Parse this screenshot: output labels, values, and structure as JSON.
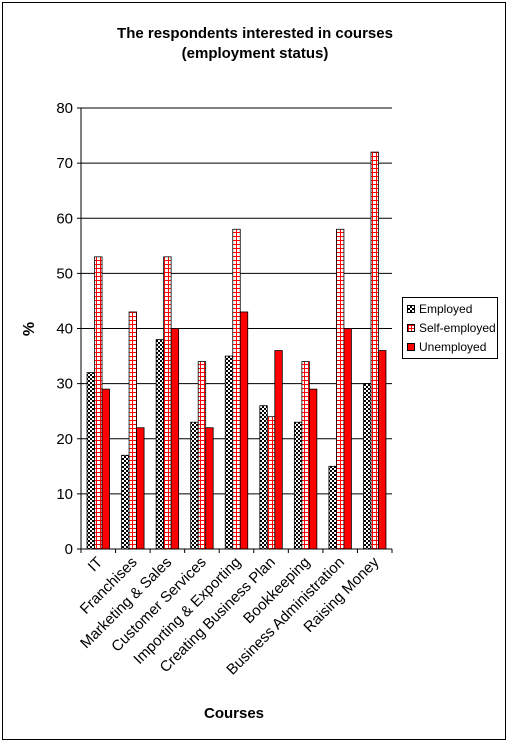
{
  "chart_data": {
    "type": "bar",
    "title_line1": "The respondents interested in courses",
    "title_line2": "(employment status)",
    "xlabel": "Courses",
    "ylabel": "%",
    "ylim": [
      0,
      80
    ],
    "yticks": [
      0,
      10,
      20,
      30,
      40,
      50,
      60,
      70,
      80
    ],
    "grid": true,
    "legend_position": "right",
    "categories": [
      "IT",
      "Franchises",
      "Marketing & Sales",
      "Customer Services",
      "Importing & Exporting",
      "Creating Business Plan",
      "Bookkeeping",
      "Business Administration",
      "Raising Money"
    ],
    "series": [
      {
        "name": "Employed",
        "values": [
          32,
          17,
          38,
          23,
          35,
          26,
          23,
          15,
          30
        ],
        "pattern": "checker",
        "color": "#000000"
      },
      {
        "name": "Self-employed",
        "values": [
          53,
          43,
          53,
          34,
          58,
          24,
          34,
          58,
          72
        ],
        "pattern": "grid",
        "color": "#ff0000"
      },
      {
        "name": "Unemployed",
        "values": [
          29,
          22,
          40,
          22,
          43,
          36,
          29,
          40,
          36
        ],
        "pattern": "solid",
        "color": "#ff0000"
      }
    ]
  }
}
